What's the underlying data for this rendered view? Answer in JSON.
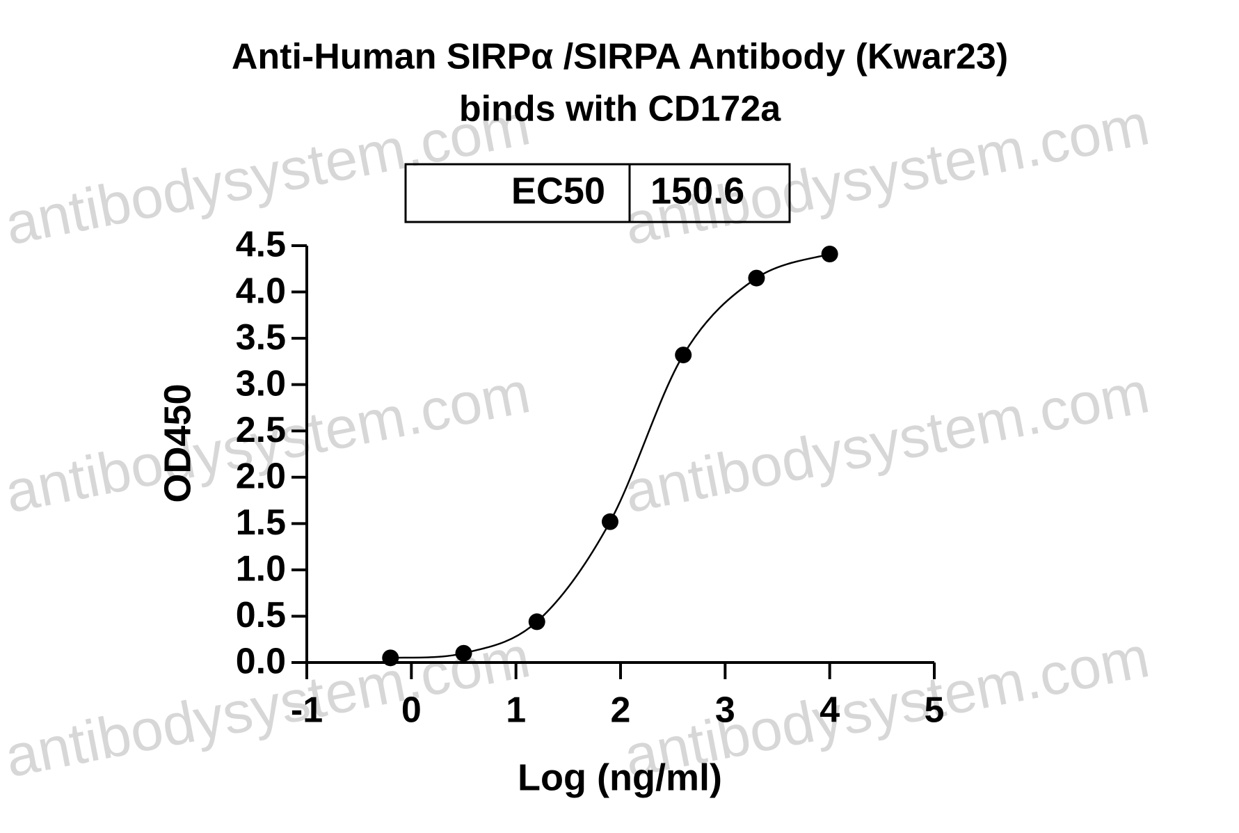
{
  "chart_data": {
    "type": "scatter",
    "title": [
      "Anti-Human SIRPα /SIRPA Antibody (Kwar23)",
      "binds with CD172a"
    ],
    "ec50": {
      "label": "EC50",
      "value": "150.6"
    },
    "x_label": "Log (ng/ml)",
    "y_label": "OD450",
    "watermark": "antibodysystem.com",
    "series": [
      {
        "name": "CD172a",
        "color": "#000000",
        "x": [
          -0.2,
          0.5,
          1.2,
          1.9,
          2.6,
          3.3,
          4.0
        ],
        "values": [
          0.05,
          0.1,
          0.44,
          1.52,
          3.32,
          4.15,
          4.41
        ]
      }
    ],
    "fit_curve": true,
    "xlim": [
      -1,
      5
    ],
    "xticks": [
      -1,
      0,
      1,
      2,
      3,
      4,
      5
    ],
    "ylim": [
      0,
      4.5
    ],
    "yticks": [
      {
        "value": 0,
        "label": "0.0"
      },
      {
        "value": 0.5,
        "label": "0.5"
      },
      {
        "value": 1,
        "label": "1.0"
      },
      {
        "value": 1.5,
        "label": "1.5"
      },
      {
        "value": 2,
        "label": "2.0"
      },
      {
        "value": 2.5,
        "label": "2.5"
      },
      {
        "value": 3,
        "label": "3.0"
      },
      {
        "value": 3.5,
        "label": "3.5"
      },
      {
        "value": 4,
        "label": "4.0"
      },
      {
        "value": 4.5,
        "label": "4.5"
      }
    ],
    "grid": false
  }
}
